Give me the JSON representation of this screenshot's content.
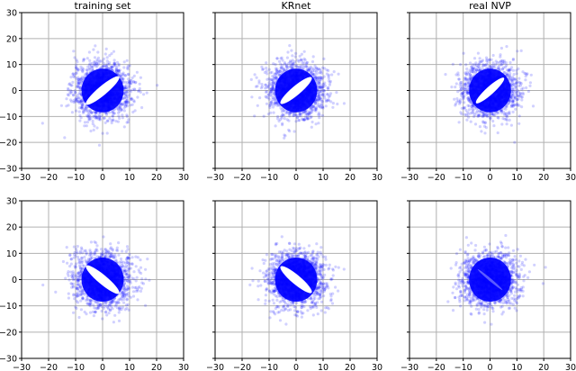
{
  "figure": {
    "rows": 2,
    "cols": 3,
    "point_color": "#0000ff",
    "grid_color": "#b0b0b0"
  },
  "chart_data": [
    {
      "type": "scatter",
      "title": "training set",
      "row": 0,
      "col": 0,
      "xlim": [
        -30,
        30
      ],
      "ylim": [
        -30,
        30
      ],
      "xticks": [
        -30,
        -20,
        -10,
        0,
        10,
        20,
        30
      ],
      "yticks": [
        -30,
        -20,
        -10,
        0,
        10,
        20,
        30
      ],
      "grid": true,
      "cloud": {
        "center": [
          0,
          0
        ],
        "radius": 13
      },
      "hole": {
        "center": [
          0,
          0
        ],
        "length": 16,
        "width": 3.5,
        "angle_deg": 40
      }
    },
    {
      "type": "scatter",
      "title": "KRnet",
      "row": 0,
      "col": 1,
      "xlim": [
        -30,
        30
      ],
      "ylim": [
        -30,
        30
      ],
      "xticks": [
        -30,
        -20,
        -10,
        0,
        10,
        20,
        30
      ],
      "yticks": [],
      "grid": true,
      "cloud": {
        "center": [
          0,
          0
        ],
        "radius": 13
      },
      "hole": {
        "center": [
          0,
          0
        ],
        "length": 15,
        "width": 3.5,
        "angle_deg": 40
      }
    },
    {
      "type": "scatter",
      "title": "real NVP",
      "row": 0,
      "col": 2,
      "xlim": [
        -30,
        30
      ],
      "ylim": [
        -30,
        30
      ],
      "xticks": [
        -30,
        -20,
        -10,
        0,
        10,
        20,
        30
      ],
      "yticks": [],
      "grid": true,
      "cloud": {
        "center": [
          0,
          0
        ],
        "radius": 13
      },
      "hole": {
        "center": [
          0,
          0
        ],
        "length": 14,
        "width": 3,
        "angle_deg": 42
      }
    },
    {
      "type": "scatter",
      "title": "",
      "row": 1,
      "col": 0,
      "xlim": [
        -30,
        30
      ],
      "ylim": [
        -30,
        30
      ],
      "xticks": [
        -30,
        -20,
        -10,
        0,
        10,
        20,
        30
      ],
      "yticks": [
        -30,
        -20,
        -10,
        0,
        10,
        20,
        30
      ],
      "grid": true,
      "cloud": {
        "center": [
          0,
          0
        ],
        "radius": 13
      },
      "hole": {
        "center": [
          0,
          0
        ],
        "length": 16,
        "width": 3.5,
        "angle_deg": -40
      }
    },
    {
      "type": "scatter",
      "title": "",
      "row": 1,
      "col": 1,
      "xlim": [
        -30,
        30
      ],
      "ylim": [
        -30,
        30
      ],
      "xticks": [
        -30,
        -20,
        -10,
        0,
        10,
        20,
        30
      ],
      "yticks": [],
      "grid": true,
      "cloud": {
        "center": [
          0,
          0
        ],
        "radius": 13
      },
      "hole": {
        "center": [
          0,
          0
        ],
        "length": 15,
        "width": 3.5,
        "angle_deg": -40
      }
    },
    {
      "type": "scatter",
      "title": "",
      "row": 1,
      "col": 2,
      "xlim": [
        -30,
        30
      ],
      "ylim": [
        -30,
        30
      ],
      "xticks": [
        -30,
        -20,
        -10,
        0,
        10,
        20,
        30
      ],
      "yticks": [],
      "grid": true,
      "cloud": {
        "center": [
          0,
          0
        ],
        "radius": 13
      },
      "hole": {
        "center": [
          0,
          0
        ],
        "length": 12,
        "width": 1,
        "angle_deg": -40,
        "faint": true
      }
    }
  ]
}
